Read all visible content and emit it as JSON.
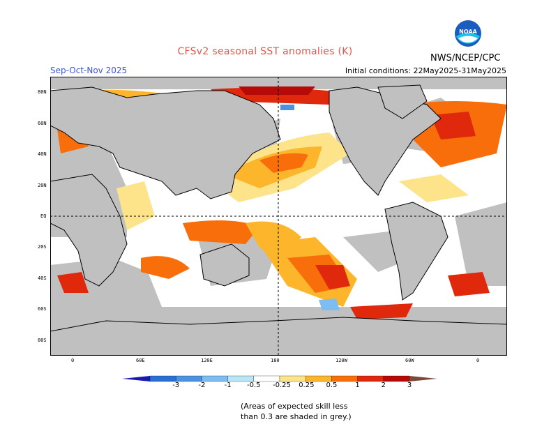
{
  "header": {
    "title": "CFSv2 seasonal SST anomalies (K)",
    "season": "Sep-Oct-Nov 2025",
    "initial_conditions": "Initial conditions: 22May2025-31May2025",
    "agency": "NWS/NCEP/CPC",
    "logo_text": "NOAA"
  },
  "axes": {
    "lat_labels": [
      "80N",
      "60N",
      "40N",
      "20N",
      "EQ",
      "20S",
      "40S",
      "60S",
      "80S"
    ],
    "lon_labels": [
      "0",
      "60E",
      "120E",
      "180",
      "120W",
      "60W",
      "0"
    ]
  },
  "colorbar": {
    "labels": [
      "-3",
      "-2",
      "-1",
      "-0.5",
      "-0.25",
      "0.25",
      "0.5",
      "1",
      "2",
      "3"
    ],
    "colors": [
      "#1a1ab2",
      "#2a6fd6",
      "#4a92e6",
      "#7dbdf2",
      "#b8e6f8",
      "#ffffff",
      "#fde48a",
      "#fdb52b",
      "#f86e0a",
      "#e0280c",
      "#b50a07",
      "#7b4a3c"
    ]
  },
  "colors": {
    "grey_low_skill": "#c0c0c0",
    "land": "#ffffff",
    "coast": "#000000",
    "ocean_neutral": "#ffffff"
  },
  "note": {
    "line1": "(Areas of expected skill less",
    "line2": "than 0.3 are shaded in grey.)"
  }
}
